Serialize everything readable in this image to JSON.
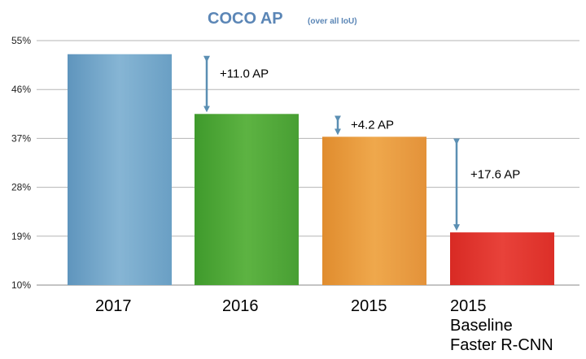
{
  "chart_data": {
    "type": "bar",
    "title": "COCO AP",
    "subtitle": "(over all IoU)",
    "xlabel": "",
    "ylabel": "",
    "ylim": [
      10,
      55
    ],
    "yticks": [
      "10%",
      "19%",
      "28%",
      "37%",
      "46%",
      "55%"
    ],
    "ytick_values": [
      10,
      19,
      28,
      37,
      46,
      55
    ],
    "grid": true,
    "categories": [
      [
        "2017"
      ],
      [
        "2016"
      ],
      [
        "2015"
      ],
      [
        "2015",
        "Baseline",
        "Faster R-CNN"
      ]
    ],
    "values": [
      52.5,
      41.5,
      37.3,
      19.7
    ],
    "colors": [
      "#6fa3c6",
      "#52a83a",
      "#e89a3c",
      "#e0302a"
    ],
    "annotations": [
      {
        "label": "+11.0 AP",
        "from": 52.5,
        "to": 41.5
      },
      {
        "label": "+4.2 AP",
        "from": 41.5,
        "to": 37.3
      },
      {
        "label": "+17.6 AP",
        "from": 37.3,
        "to": 19.7
      }
    ],
    "title_color": "#5b86b6",
    "arrow_color": "#5b8fb3"
  }
}
